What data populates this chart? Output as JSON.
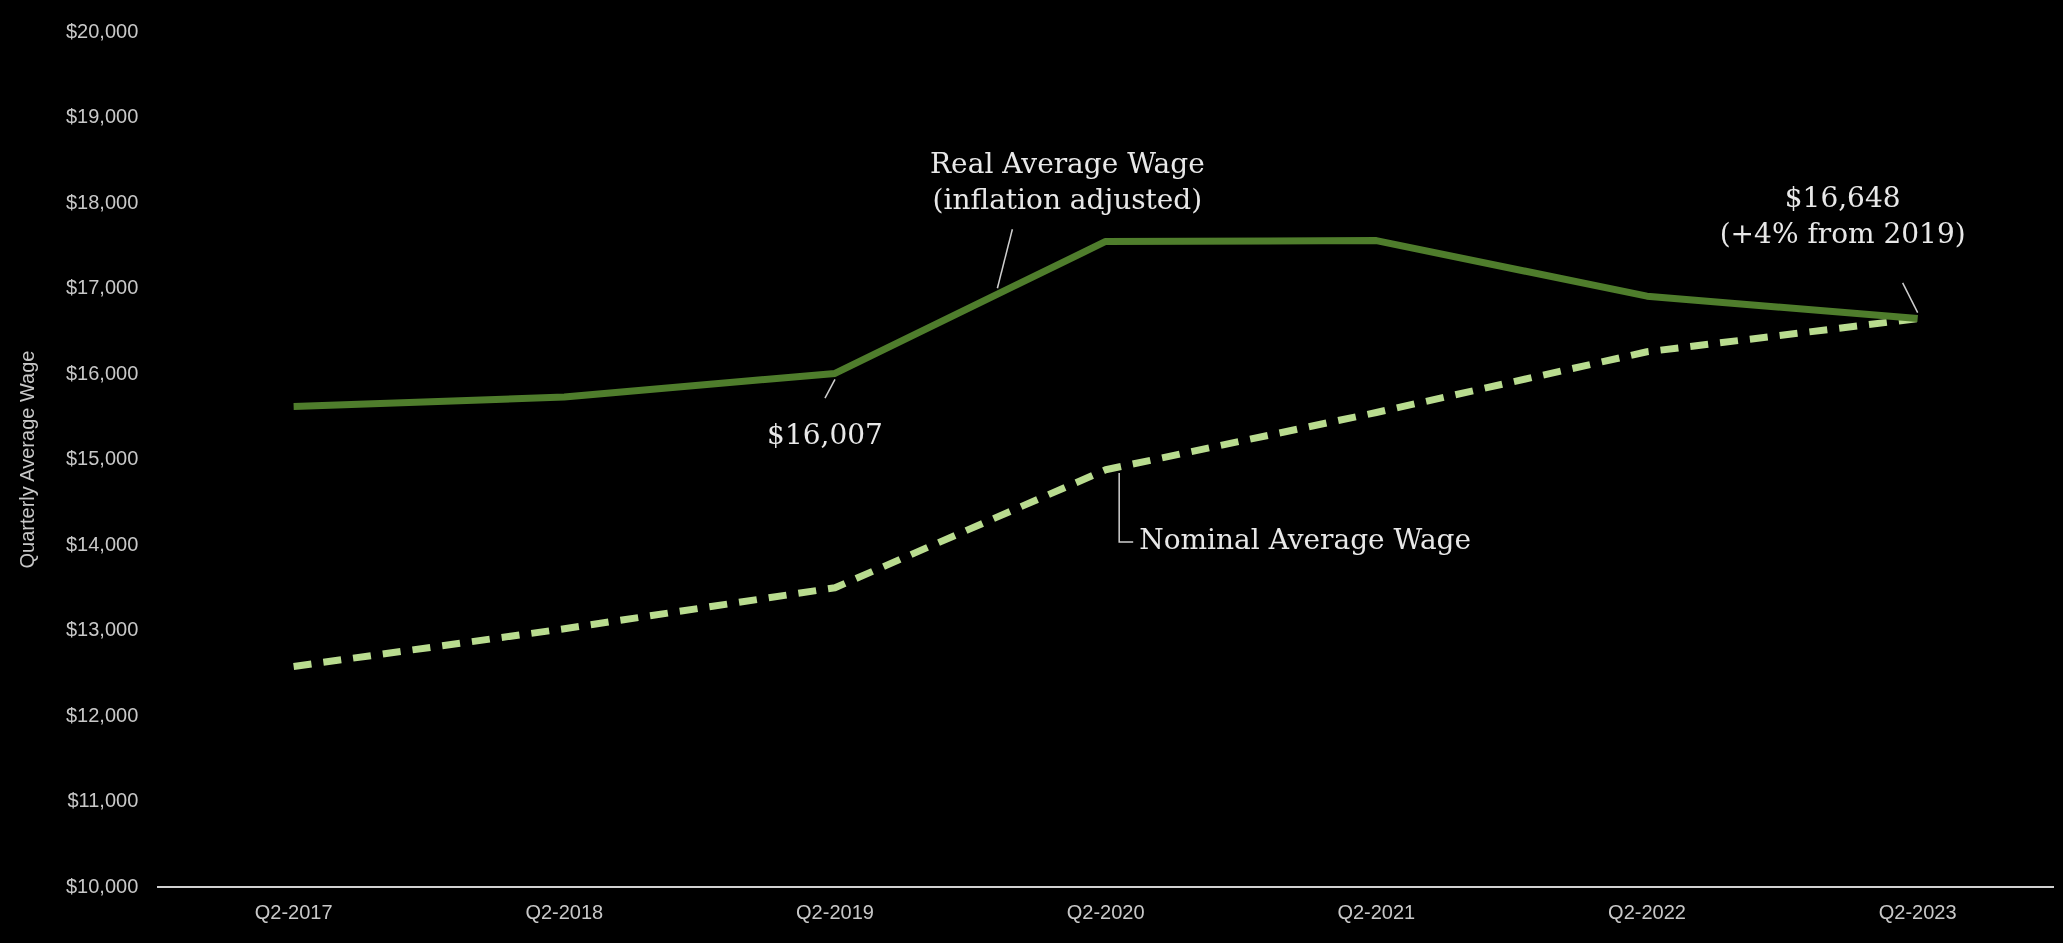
{
  "chart_data": {
    "type": "line",
    "ylabel": "Quarterly Average Wage",
    "categories": [
      "Q2-2017",
      "Q2-2018",
      "Q2-2019",
      "Q2-2020",
      "Q2-2021",
      "Q2-2022",
      "Q2-2023"
    ],
    "series": [
      {
        "name": "Real Average Wage\n(inflation adjusted)",
        "color": "#4f7d2c",
        "line_style": "solid",
        "values": [
          15620,
          15730,
          16007,
          17550,
          17560,
          16910,
          16648
        ]
      },
      {
        "name": "Nominal Average Wage",
        "color": "#b9dc8f",
        "line_style": "dashed",
        "values": [
          12580,
          13020,
          13500,
          14880,
          15550,
          16260,
          16648
        ]
      }
    ],
    "ylim": [
      10000,
      20000
    ],
    "yticks": [
      {
        "value": 10000,
        "label": "$10,000"
      },
      {
        "value": 11000,
        "label": "$11,000"
      },
      {
        "value": 12000,
        "label": "$12,000"
      },
      {
        "value": 13000,
        "label": "$13,000"
      },
      {
        "value": 14000,
        "label": "$14,000"
      },
      {
        "value": 15000,
        "label": "$15,000"
      },
      {
        "value": 16000,
        "label": "$16,000"
      },
      {
        "value": 17000,
        "label": "$17,000"
      },
      {
        "value": 18000,
        "label": "$18,000"
      },
      {
        "value": 19000,
        "label": "$19,000"
      },
      {
        "value": 20000,
        "label": "$20,000"
      }
    ],
    "annotations": [
      {
        "text": "$16,007",
        "x": "Q2-2019",
        "y": 16007
      },
      {
        "text": "$16,648\n(+4% from 2019)",
        "x": "Q2-2023",
        "y": 16648
      }
    ],
    "grid": false,
    "legend": false,
    "marker": "none"
  }
}
